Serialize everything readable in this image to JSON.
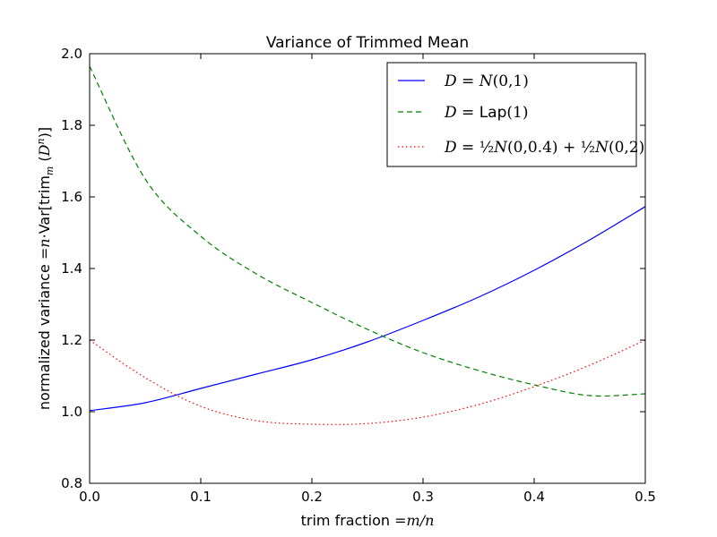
{
  "chart_data": {
    "type": "line",
    "title": "Variance of Trimmed Mean",
    "xlabel": "trim fraction =m/n",
    "ylabel": "normalized variance =n·Var[trim_m (D^n)]",
    "xlim": [
      0.0,
      0.5
    ],
    "ylim": [
      0.8,
      2.0
    ],
    "x_ticks": [
      0.0,
      0.1,
      0.2,
      0.3,
      0.4,
      0.5
    ],
    "x_tick_labels": [
      "0.0",
      "0.1",
      "0.2",
      "0.3",
      "0.4",
      "0.5"
    ],
    "y_ticks": [
      0.8,
      1.0,
      1.2,
      1.4,
      1.6,
      1.8,
      2.0
    ],
    "y_tick_labels": [
      "0.8",
      "1.0",
      "1.2",
      "1.4",
      "1.6",
      "1.8",
      "2.0"
    ],
    "grid": false,
    "legend_position": "top-right",
    "x": [
      0.0,
      0.05,
      0.1,
      0.15,
      0.2,
      0.25,
      0.3,
      0.35,
      0.4,
      0.45,
      0.5
    ],
    "series": [
      {
        "name": "D=N(0,1)",
        "legend_label": "D = N(0,1)",
        "color": "#0000ff",
        "linestyle": "solid",
        "values": [
          1.003,
          1.025,
          1.065,
          1.105,
          1.145,
          1.195,
          1.255,
          1.32,
          1.395,
          1.48,
          1.573
        ]
      },
      {
        "name": "D=Lap(1)",
        "legend_label": "D = Lap(1)",
        "color": "#008000",
        "linestyle": "dashed",
        "values": [
          1.965,
          1.65,
          1.49,
          1.385,
          1.305,
          1.23,
          1.165,
          1.115,
          1.075,
          1.045,
          1.05
        ]
      },
      {
        "name": "D=½N(0,0.4)+½N(0,2)",
        "legend_label": "D = ½N(0,0.4) + ½N(0,2)",
        "color": "#ff0000",
        "linestyle": "dotted",
        "values": [
          1.2,
          1.095,
          1.015,
          0.975,
          0.965,
          0.967,
          0.985,
          1.02,
          1.07,
          1.13,
          1.2
        ]
      }
    ]
  }
}
